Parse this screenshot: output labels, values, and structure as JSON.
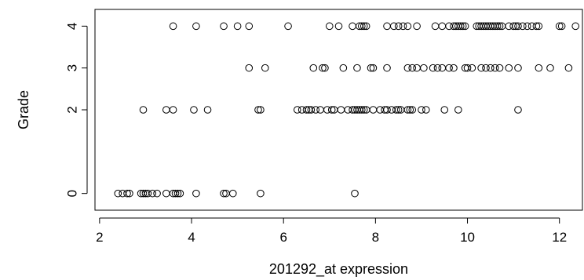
{
  "chart_data": {
    "type": "scatter",
    "xlabel": "201292_at expression",
    "ylabel": "Grade",
    "xlim": [
      1.9,
      12.5
    ],
    "ylim": [
      -0.4,
      4.4
    ],
    "x_ticks": [
      2,
      4,
      6,
      8,
      10,
      12
    ],
    "y_ticks": [
      0,
      2,
      3,
      4
    ],
    "grid": false,
    "series": [
      {
        "values_note_omitted": null,
        "points": [
          [
            3.6,
            4
          ],
          [
            4.1,
            4
          ],
          [
            4.7,
            4
          ],
          [
            5.0,
            4
          ],
          [
            5.25,
            4
          ],
          [
            6.1,
            4
          ],
          [
            7.0,
            4
          ],
          [
            7.2,
            4
          ],
          [
            7.5,
            4
          ],
          [
            7.65,
            4
          ],
          [
            7.7,
            4
          ],
          [
            7.75,
            4
          ],
          [
            7.8,
            4
          ],
          [
            8.25,
            4
          ],
          [
            8.4,
            4
          ],
          [
            8.5,
            4
          ],
          [
            8.6,
            4
          ],
          [
            8.7,
            4
          ],
          [
            8.9,
            4
          ],
          [
            9.3,
            4
          ],
          [
            9.45,
            4
          ],
          [
            9.6,
            4
          ],
          [
            9.7,
            4
          ],
          [
            9.75,
            4
          ],
          [
            9.8,
            4
          ],
          [
            9.85,
            4
          ],
          [
            9.9,
            4
          ],
          [
            9.95,
            4
          ],
          [
            10.2,
            4
          ],
          [
            10.25,
            4
          ],
          [
            10.3,
            4
          ],
          [
            10.35,
            4
          ],
          [
            10.4,
            4
          ],
          [
            10.45,
            4
          ],
          [
            10.5,
            4
          ],
          [
            10.55,
            4
          ],
          [
            10.6,
            4
          ],
          [
            10.65,
            4
          ],
          [
            10.7,
            4
          ],
          [
            10.75,
            4
          ],
          [
            10.9,
            4
          ],
          [
            11.0,
            4
          ],
          [
            11.05,
            4
          ],
          [
            11.1,
            4
          ],
          [
            11.2,
            4
          ],
          [
            11.3,
            4
          ],
          [
            11.4,
            4
          ],
          [
            11.5,
            4
          ],
          [
            11.55,
            4
          ],
          [
            12.0,
            4
          ],
          [
            12.05,
            4
          ],
          [
            12.35,
            4
          ],
          [
            5.25,
            3
          ],
          [
            5.6,
            3
          ],
          [
            6.65,
            3
          ],
          [
            6.85,
            3
          ],
          [
            6.9,
            3
          ],
          [
            7.3,
            3
          ],
          [
            7.6,
            3
          ],
          [
            7.9,
            3
          ],
          [
            7.95,
            3
          ],
          [
            8.25,
            3
          ],
          [
            8.7,
            3
          ],
          [
            8.8,
            3
          ],
          [
            8.9,
            3
          ],
          [
            9.05,
            3
          ],
          [
            9.25,
            3
          ],
          [
            9.35,
            3
          ],
          [
            9.45,
            3
          ],
          [
            9.6,
            3
          ],
          [
            9.7,
            3
          ],
          [
            9.95,
            3
          ],
          [
            10.0,
            3
          ],
          [
            10.1,
            3
          ],
          [
            10.3,
            3
          ],
          [
            10.4,
            3
          ],
          [
            10.5,
            3
          ],
          [
            10.6,
            3
          ],
          [
            10.7,
            3
          ],
          [
            10.9,
            3
          ],
          [
            11.1,
            3
          ],
          [
            11.55,
            3
          ],
          [
            11.8,
            3
          ],
          [
            12.2,
            3
          ],
          [
            2.95,
            2
          ],
          [
            3.45,
            2
          ],
          [
            3.6,
            2
          ],
          [
            4.05,
            2
          ],
          [
            4.35,
            2
          ],
          [
            5.45,
            2
          ],
          [
            5.5,
            2
          ],
          [
            6.3,
            2
          ],
          [
            6.4,
            2
          ],
          [
            6.5,
            2
          ],
          [
            6.55,
            2
          ],
          [
            6.6,
            2
          ],
          [
            6.7,
            2
          ],
          [
            6.8,
            2
          ],
          [
            6.95,
            2
          ],
          [
            7.05,
            2
          ],
          [
            7.1,
            2
          ],
          [
            7.25,
            2
          ],
          [
            7.4,
            2
          ],
          [
            7.5,
            2
          ],
          [
            7.55,
            2
          ],
          [
            7.6,
            2
          ],
          [
            7.65,
            2
          ],
          [
            7.7,
            2
          ],
          [
            7.75,
            2
          ],
          [
            7.8,
            2
          ],
          [
            7.95,
            2
          ],
          [
            8.1,
            2
          ],
          [
            8.2,
            2
          ],
          [
            8.25,
            2
          ],
          [
            8.35,
            2
          ],
          [
            8.45,
            2
          ],
          [
            8.5,
            2
          ],
          [
            8.55,
            2
          ],
          [
            8.7,
            2
          ],
          [
            8.75,
            2
          ],
          [
            8.8,
            2
          ],
          [
            9.0,
            2
          ],
          [
            9.1,
            2
          ],
          [
            9.5,
            2
          ],
          [
            9.8,
            2
          ],
          [
            11.1,
            2
          ],
          [
            2.4,
            0
          ],
          [
            2.5,
            0
          ],
          [
            2.6,
            0
          ],
          [
            2.65,
            0
          ],
          [
            2.9,
            0
          ],
          [
            2.95,
            0
          ],
          [
            3.0,
            0
          ],
          [
            3.05,
            0
          ],
          [
            3.15,
            0
          ],
          [
            3.25,
            0
          ],
          [
            3.45,
            0
          ],
          [
            3.6,
            0
          ],
          [
            3.65,
            0
          ],
          [
            3.7,
            0
          ],
          [
            3.75,
            0
          ],
          [
            4.1,
            0
          ],
          [
            4.7,
            0
          ],
          [
            4.75,
            0
          ],
          [
            4.9,
            0
          ],
          [
            5.5,
            0
          ],
          [
            7.55,
            0
          ]
        ]
      }
    ]
  }
}
